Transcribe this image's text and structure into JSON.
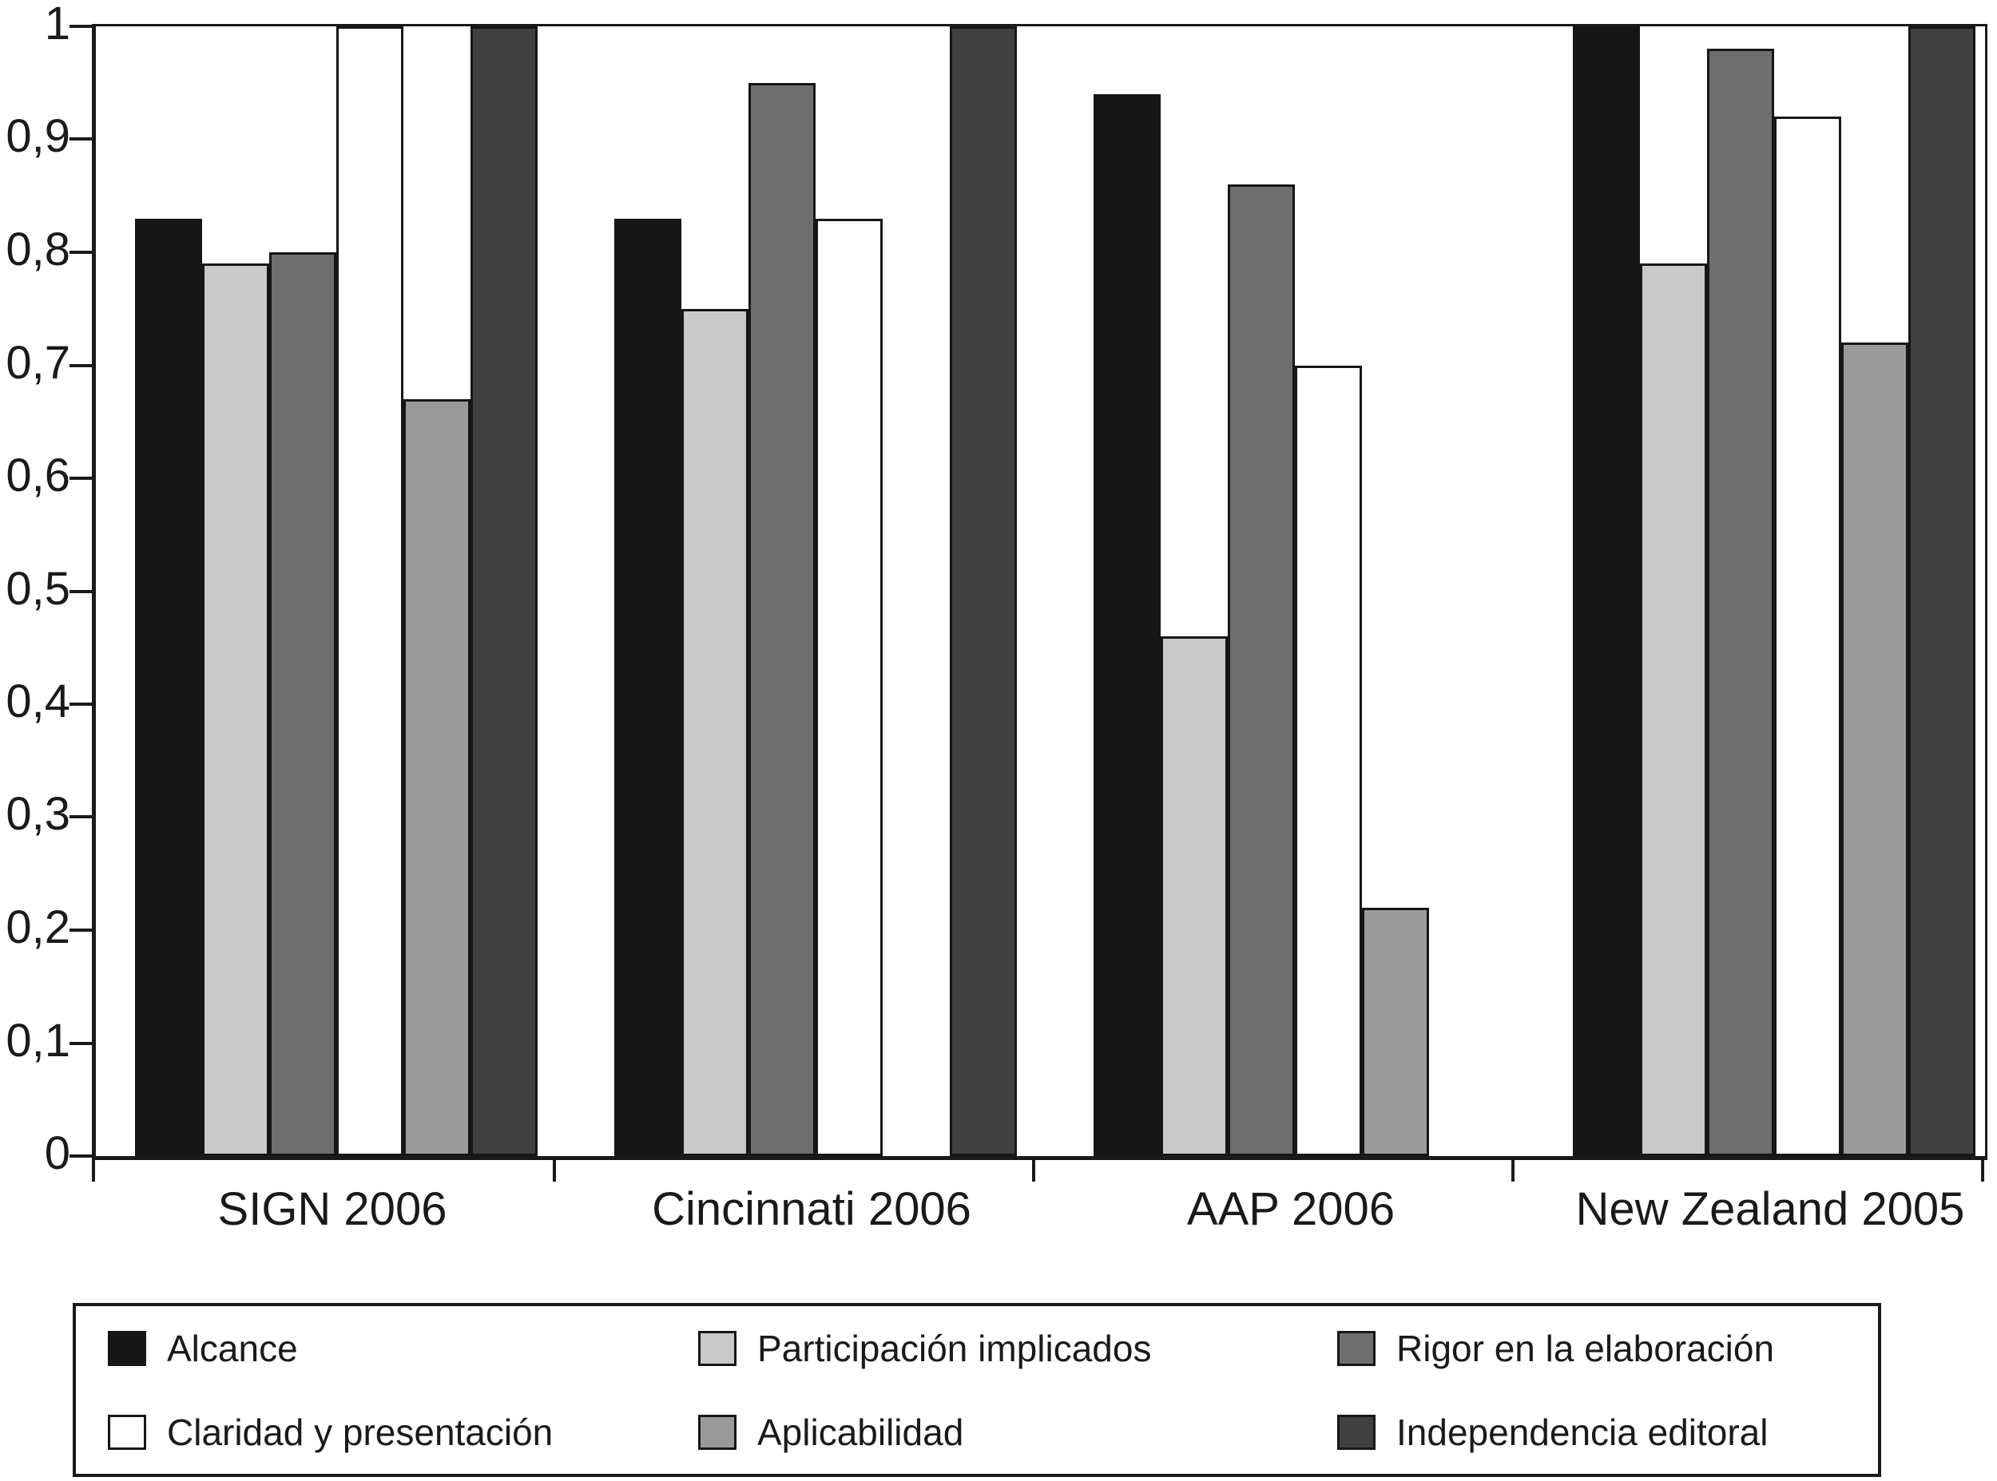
{
  "chart_data": {
    "type": "bar",
    "title": "",
    "xlabel": "",
    "ylabel": "",
    "ylim": [
      0,
      1
    ],
    "grid": false,
    "legend_position": "bottom",
    "decimal_separator": ",",
    "categories": [
      "SIGN 2006",
      "Cincinnati 2006",
      "AAP 2006",
      "New Zealand 2005"
    ],
    "series": [
      {
        "name": "Alcance",
        "color": "#161616",
        "border": "#161616",
        "values": [
          0.83,
          0.83,
          0.94,
          1.0
        ]
      },
      {
        "name": "Participación implicados",
        "color": "#c9c9c9",
        "border": "#161616",
        "values": [
          0.79,
          0.75,
          0.46,
          0.79
        ]
      },
      {
        "name": "Rigor en la elaboración",
        "color": "#6e6e6e",
        "border": "#161616",
        "values": [
          0.8,
          0.95,
          0.86,
          0.98
        ]
      },
      {
        "name": "Claridad y presentación",
        "color": "#ffffff",
        "border": "#161616",
        "values": [
          1.0,
          0.83,
          0.7,
          0.92
        ]
      },
      {
        "name": "Aplicabilidad",
        "color": "#9a9a9a",
        "border": "#161616",
        "values": [
          0.67,
          null,
          0.22,
          0.72
        ]
      },
      {
        "name": "Independencia editoral",
        "color": "#404040",
        "border": "#161616",
        "values": [
          1.0,
          1.0,
          null,
          1.0
        ]
      }
    ],
    "yticks": [
      {
        "v": 1.0,
        "label": "1"
      },
      {
        "v": 0.9,
        "label": "0,9"
      },
      {
        "v": 0.8,
        "label": "0,8"
      },
      {
        "v": 0.7,
        "label": "0,7"
      },
      {
        "v": 0.6,
        "label": "0,6"
      },
      {
        "v": 0.5,
        "label": "0,5"
      },
      {
        "v": 0.4,
        "label": "0,4"
      },
      {
        "v": 0.3,
        "label": "0,3"
      },
      {
        "v": 0.2,
        "label": "0,2"
      },
      {
        "v": 0.1,
        "label": "0,1"
      },
      {
        "v": 0.0,
        "label": "0"
      }
    ]
  }
}
